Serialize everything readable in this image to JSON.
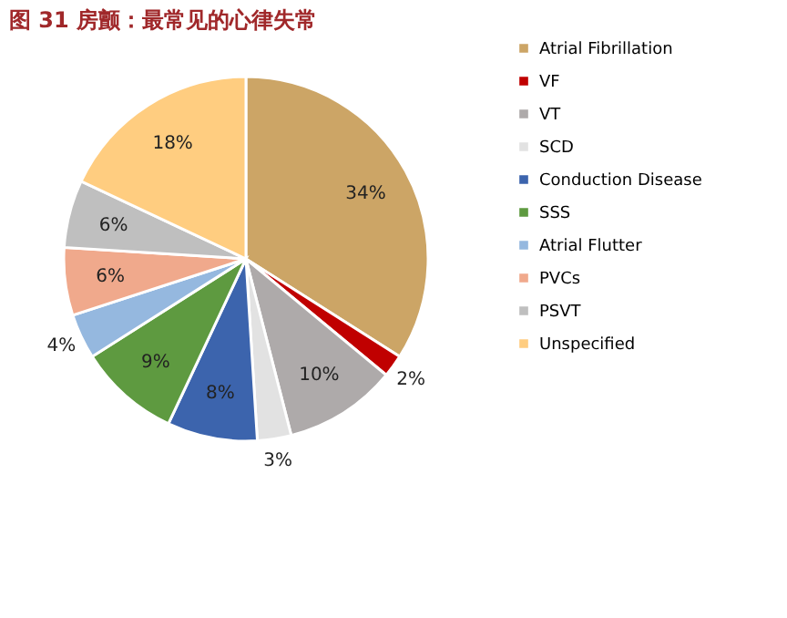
{
  "chart_data": {
    "type": "pie",
    "title": "图 31  房颤：最常见的心律失常",
    "categories": [
      "Atrial Fibrillation",
      "VF",
      "VT",
      "SCD",
      "Conduction Disease",
      "SSS",
      "Atrial Flutter",
      "PVCs",
      "PSVT",
      "Unspecified"
    ],
    "values": [
      34,
      2,
      10,
      3,
      8,
      9,
      4,
      6,
      6,
      18
    ],
    "value_labels": [
      "34%",
      "2%",
      "10%",
      "3%",
      "8%",
      "9%",
      "4%",
      "6%",
      "6%",
      "18%"
    ],
    "colors": [
      "#cca566",
      "#c00000",
      "#aeaaaa",
      "#e2e2e2",
      "#3c64ad",
      "#5e9a40",
      "#95b8df",
      "#f0a98c",
      "#bfbfbf",
      "#ffcd80"
    ],
    "legend": "right"
  }
}
